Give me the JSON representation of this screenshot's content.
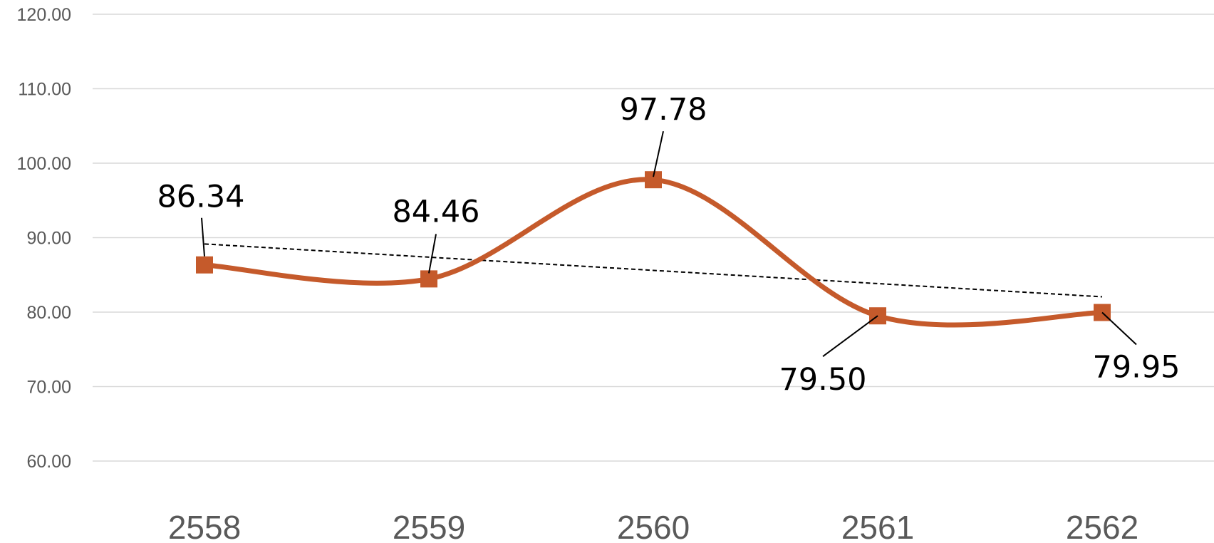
{
  "chart_data": {
    "type": "line",
    "smooth": true,
    "categories": [
      "2558",
      "2559",
      "2560",
      "2561",
      "2562"
    ],
    "series": [
      {
        "values": [
          86.34,
          84.46,
          97.78,
          79.5,
          79.95
        ],
        "color": "#C55A2B",
        "marker": "square",
        "data_labels": [
          "86.34",
          "84.46",
          "97.78",
          "79.50",
          "79.95"
        ]
      }
    ],
    "trendline": {
      "type": "linear",
      "style": "dashed",
      "color": "#000000"
    },
    "ylim": [
      60,
      120
    ],
    "yticks": [
      60,
      70,
      80,
      90,
      100,
      110,
      120
    ],
    "ytick_labels": [
      "60.00",
      "70.00",
      "80.00",
      "90.00",
      "100.00",
      "110.00",
      "120.00"
    ],
    "grid": true,
    "legend": false,
    "title": "",
    "xlabel": "",
    "ylabel": ""
  }
}
